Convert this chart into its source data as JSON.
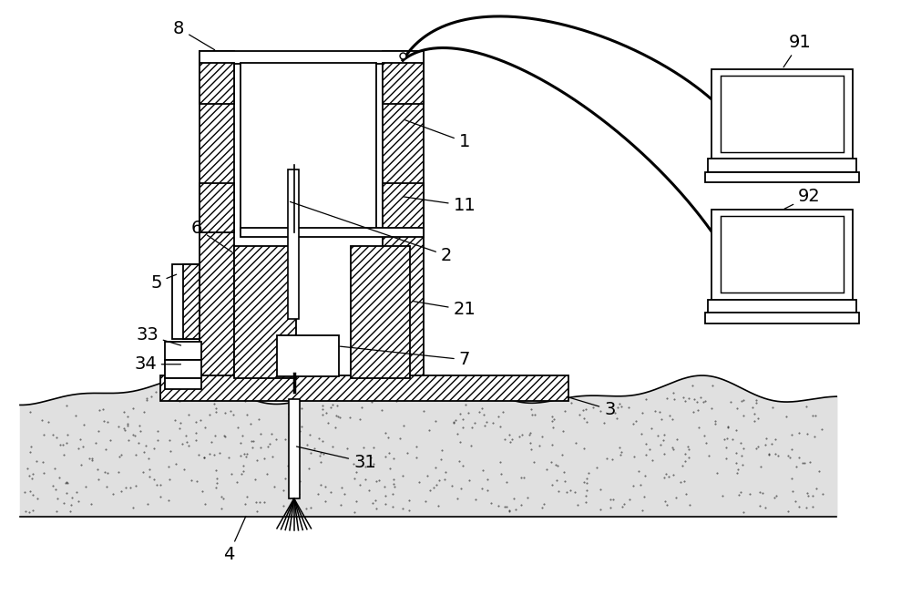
{
  "bg_color": "#ffffff",
  "line_color": "#000000",
  "fig_width": 10.0,
  "fig_height": 6.76,
  "lw": 1.3
}
